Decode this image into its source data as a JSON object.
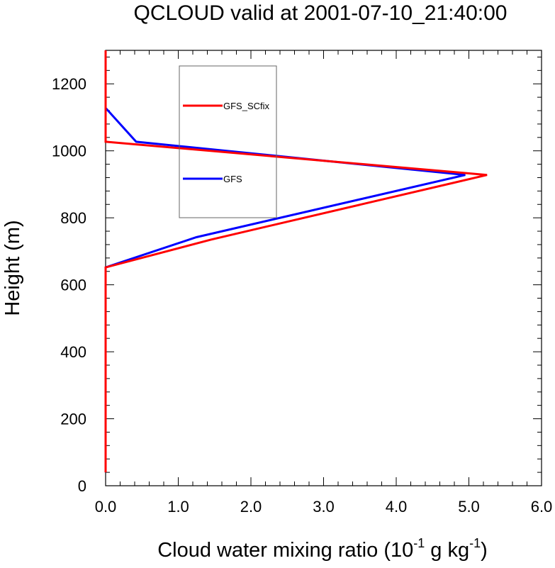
{
  "chart_data": {
    "type": "line",
    "title": "QCLOUD valid at 2001-07-10_21:40:00",
    "xlabel": {
      "base": "Cloud water mixing ratio (10",
      "sup1": "-1",
      "mid": " g kg",
      "sup2": "-1",
      "end": ")"
    },
    "ylabel": "Height (m)",
    "xlim": [
      0,
      6
    ],
    "ylim": [
      0,
      1300
    ],
    "xticks": [
      0,
      1,
      2,
      3,
      4,
      5,
      6
    ],
    "xtick_labels": [
      "0.0",
      "1.0",
      "2.0",
      "3.0",
      "4.0",
      "5.0",
      "6.0"
    ],
    "yticks": [
      0,
      200,
      400,
      600,
      800,
      1000,
      1200
    ],
    "ytick_labels": [
      "0",
      "200",
      "400",
      "600",
      "800",
      "1000",
      "1200"
    ],
    "legend": [
      "GFS_SCfix",
      "GFS"
    ],
    "series": [
      {
        "name": "GFS",
        "color": "#0000ff",
        "x": [
          0.0,
          0.0,
          0.0,
          0.0,
          1.25,
          4.95,
          0.42,
          0.0,
          0.0
        ],
        "y": [
          40,
          600,
          650,
          652,
          742,
          928,
          1027,
          1128,
          1300
        ]
      },
      {
        "name": "GFS_SCfix",
        "color": "#ff0000",
        "x": [
          0.0,
          0.0,
          0.0,
          0.0,
          1.45,
          5.25,
          0.0,
          0.0,
          0.0
        ],
        "y": [
          40,
          600,
          650,
          652,
          735,
          928,
          1027,
          1128,
          1300
        ]
      }
    ]
  }
}
